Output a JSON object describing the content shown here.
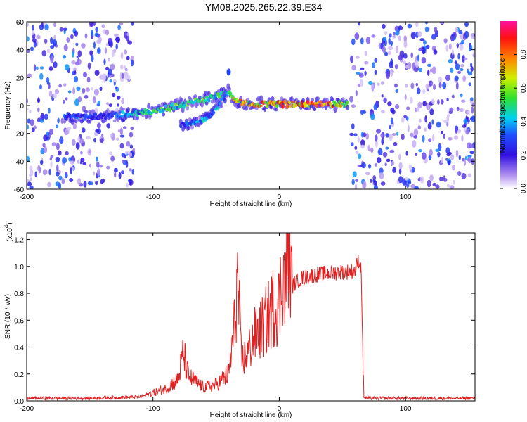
{
  "title": "YM08.2025.265.22.39.E34",
  "colors": {
    "snr_line": "#e02020",
    "band_low": "#7b2cf0",
    "band_mid": "#2fd0e0",
    "band_high": "#ff2020"
  },
  "chart_data": [
    {
      "type": "heatmap",
      "title": "YM08.2025.265.22.39.E34",
      "xlabel": "Height of straight line (km)",
      "ylabel": "Frequency (Hz)",
      "xlim": [
        -200,
        155
      ],
      "ylim": [
        -60,
        60
      ],
      "x_ticks": [
        -200,
        -100,
        0,
        100
      ],
      "y_ticks": [
        -60,
        -40,
        -20,
        0,
        20,
        40,
        60
      ],
      "noise_regions": [
        [
          -200,
          -115
        ],
        [
          57,
          155
        ]
      ],
      "signal_band": {
        "x": [
          -170,
          -140,
          -120,
          -100,
          -80,
          -60,
          -45,
          -40,
          -35,
          -20,
          0,
          20,
          40,
          55
        ],
        "freq": [
          -8,
          -8,
          -6,
          -4,
          0,
          4,
          8,
          10,
          3,
          1,
          1,
          1,
          1,
          1
        ],
        "intensity": [
          0.35,
          0.3,
          0.45,
          0.55,
          0.6,
          0.6,
          0.55,
          0.5,
          0.8,
          0.85,
          0.9,
          0.9,
          0.95,
          0.6
        ]
      },
      "secondary_branch": {
        "x": [
          -78,
          -70,
          -60,
          -50,
          -42
        ],
        "freq": [
          -14,
          -13,
          -10,
          -3,
          8
        ],
        "intensity": [
          0.3,
          0.4,
          0.5,
          0.45,
          0.4
        ]
      },
      "colorbar": {
        "label": "Normalized spectral amplitude",
        "range": [
          0,
          1
        ],
        "ticks": [
          "0.0",
          "0.2",
          "0.4",
          "0.6",
          "0.8"
        ]
      }
    },
    {
      "type": "line",
      "xlabel": "Height of straight line (km)",
      "ylabel": "SNR (10 * v/v)",
      "scale_label": "(x10",
      "scale_exponent": "4",
      "xlim": [
        -200,
        155
      ],
      "ylim": [
        0,
        1.25
      ],
      "x_ticks": [
        -200,
        -100,
        0,
        100
      ],
      "y_ticks": [
        "0.0",
        "0.2",
        "0.4",
        "0.6",
        "0.8",
        "1.0",
        "1.2"
      ],
      "series": [
        {
          "name": "SNR",
          "x": [
            -200,
            -150,
            -110,
            -100,
            -90,
            -80,
            -76,
            -72,
            -60,
            -50,
            -40,
            -36,
            -33,
            -30,
            -25,
            -20,
            -15,
            -10,
            -5,
            0,
            3,
            5,
            7,
            10,
            15,
            20,
            30,
            40,
            50,
            55,
            60,
            63,
            65,
            66,
            67,
            70,
            100,
            155
          ],
          "values": [
            0.02,
            0.02,
            0.03,
            0.06,
            0.09,
            0.16,
            0.36,
            0.18,
            0.1,
            0.12,
            0.2,
            0.5,
            0.9,
            0.3,
            0.35,
            0.48,
            0.52,
            0.6,
            0.7,
            0.72,
            1.0,
            0.8,
            1.22,
            0.85,
            0.9,
            0.92,
            0.94,
            0.95,
            0.96,
            0.96,
            0.97,
            1.05,
            0.97,
            0.4,
            0.03,
            0.02,
            0.02,
            0.02
          ]
        }
      ]
    }
  ]
}
